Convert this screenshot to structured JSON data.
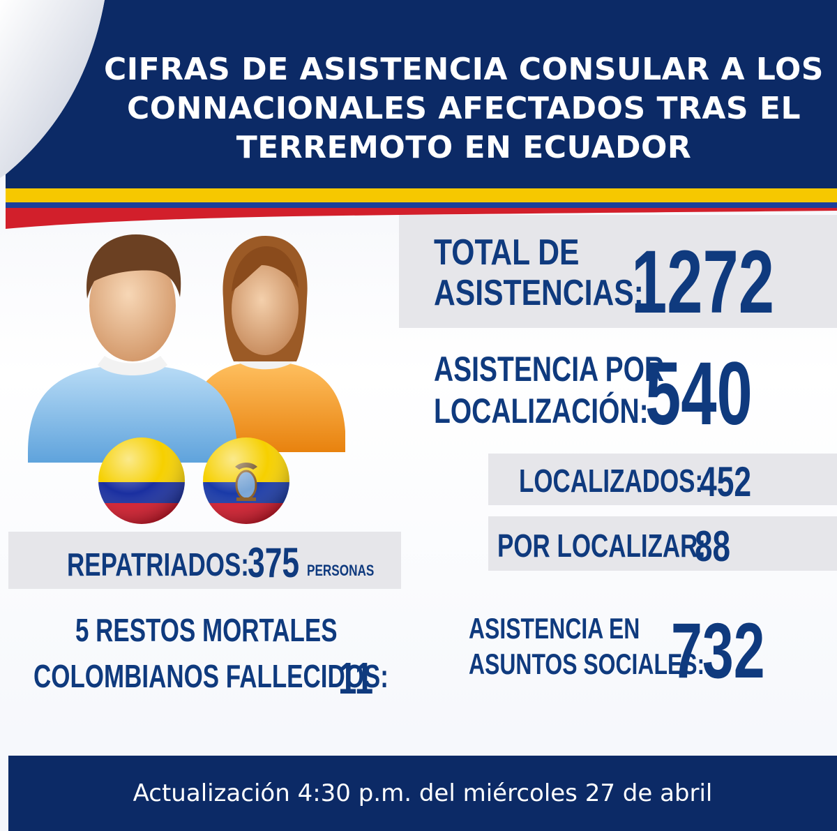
{
  "header": {
    "title": "CIFRAS DE ASISTENCIA CONSULAR A LOS\nCONNACIONALES AFECTADOS TRAS EL\nTERREMOTO EN ECUADOR"
  },
  "stats": {
    "total": {
      "label_line1": "TOTAL DE",
      "label_line2": "ASISTENCIAS:",
      "value": "1272"
    },
    "localizacion": {
      "label_line1": "ASISTENCIA POR",
      "label_line2": "LOCALIZACIÓN:",
      "value": "540"
    },
    "localizados": {
      "label": "LOCALIZADOS:",
      "value": "452"
    },
    "por_localizar": {
      "label": "POR LOCALIZAR:",
      "value": "88"
    },
    "repatriados": {
      "label": "REPATRIADOS:",
      "value": "375",
      "unit": "PERSONAS"
    },
    "restos": {
      "line1": "5 RESTOS MORTALES",
      "line2": "COLOMBIANOS FALLECIDOS:",
      "value": "11"
    },
    "sociales": {
      "label_line1": "ASISTENCIA EN",
      "label_line2": "ASUNTOS SOCIALES:",
      "value": "732"
    }
  },
  "footer": {
    "update_text": "Actualización 4:30 p.m. del miércoles 27 de abril"
  },
  "icons": {
    "people": "people-icon",
    "colombia_flag": "colombia-flag-icon",
    "ecuador_flag": "ecuador-flag-icon"
  },
  "colors": {
    "navy": "#0c2a66",
    "text_blue": "#0f3a7e",
    "panel_gray": "#e6e6ea",
    "yellow": "#f6c800",
    "blue": "#1b3f9a",
    "red": "#d21f2b"
  }
}
